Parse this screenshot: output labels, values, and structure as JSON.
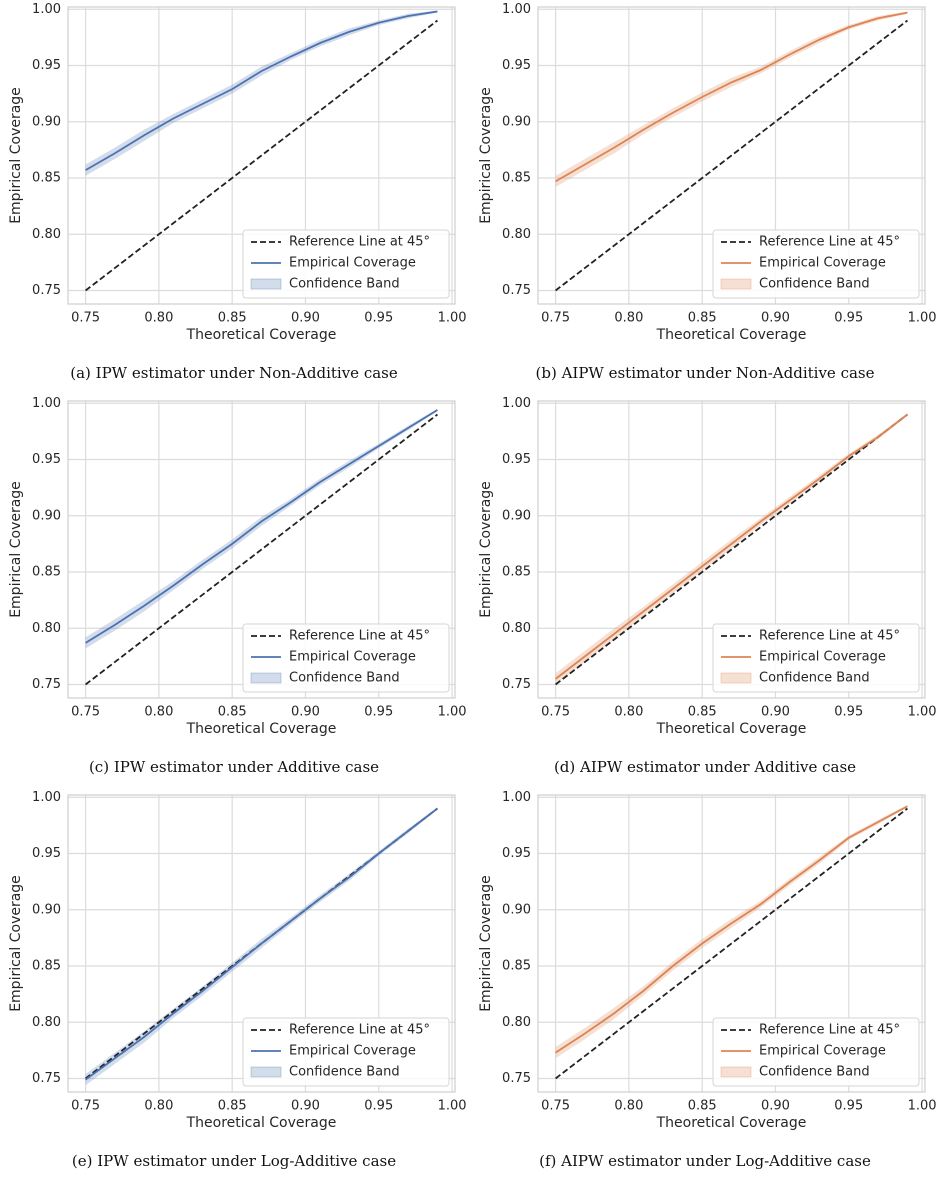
{
  "chart_data": [
    {
      "type": "line",
      "caption": "(a) IPW estimator under Non-Additive case",
      "xlabel": "Theoretical Coverage",
      "ylabel": "Empirical Coverage",
      "xlim": [
        0.738,
        1.002
      ],
      "ylim": [
        0.738,
        1.002
      ],
      "xticks": [
        0.75,
        {
          "value": 0.8,
          "label": "0.80"
        },
        0.85,
        {
          "value": 0.9,
          "label": "0.90"
        },
        0.95,
        {
          "value": 1,
          "label": "1.00"
        }
      ],
      "yticks": [
        0.75,
        {
          "value": 0.8,
          "label": "0.80"
        },
        0.85,
        {
          "value": 0.9,
          "label": "0.90"
        },
        0.95,
        {
          "value": 1,
          "label": "1.00"
        }
      ],
      "grid": true,
      "legend": "lower right",
      "x": [
        0.75,
        0.77,
        0.79,
        0.81,
        0.83,
        0.85,
        0.87,
        0.89,
        0.91,
        0.93,
        0.95,
        0.97,
        0.99
      ],
      "series": [
        {
          "name": "Reference Line at 45°",
          "color": "#222222",
          "dashed": true,
          "x": [
            0.75,
            0.99
          ],
          "values": [
            0.75,
            0.99
          ]
        },
        {
          "name": "Empirical Coverage",
          "color": "#4c72b0",
          "values": [
            0.857,
            0.872,
            0.888,
            0.903,
            0.916,
            0.929,
            0.945,
            0.958,
            0.97,
            0.98,
            0.988,
            0.994,
            0.998
          ]
        },
        {
          "name": "Confidence Band",
          "color": "#4c72b0",
          "lower": [
            0.852,
            0.867,
            0.883,
            0.899,
            0.912,
            0.925,
            0.941,
            0.955,
            0.967,
            0.977,
            0.986,
            0.992,
            0.997
          ],
          "upper": [
            0.862,
            0.877,
            0.893,
            0.907,
            0.92,
            0.933,
            0.949,
            0.961,
            0.973,
            0.983,
            0.99,
            0.996,
            0.999
          ]
        }
      ]
    },
    {
      "type": "line",
      "caption": "(b) AIPW estimator under Non-Additive case",
      "xlabel": "Theoretical Coverage",
      "ylabel": "Empirical Coverage",
      "xlim": [
        0.738,
        1.002
      ],
      "ylim": [
        0.738,
        1.002
      ],
      "xticks": [
        0.75,
        {
          "value": 0.8,
          "label": "0.80"
        },
        0.85,
        {
          "value": 0.9,
          "label": "0.90"
        },
        0.95,
        {
          "value": 1,
          "label": "1.00"
        }
      ],
      "yticks": [
        0.75,
        {
          "value": 0.8,
          "label": "0.80"
        },
        0.85,
        {
          "value": 0.9,
          "label": "0.90"
        },
        0.95,
        {
          "value": 1,
          "label": "1.00"
        }
      ],
      "grid": true,
      "legend": "lower right",
      "x": [
        0.75,
        0.77,
        0.79,
        0.81,
        0.83,
        0.85,
        0.87,
        0.89,
        0.91,
        0.93,
        0.95,
        0.97,
        0.99
      ],
      "series": [
        {
          "name": "Reference Line at 45°",
          "color": "#222222",
          "dashed": true,
          "x": [
            0.75,
            0.99
          ],
          "values": [
            0.75,
            0.99
          ]
        },
        {
          "name": "Empirical Coverage",
          "color": "#dd8452",
          "values": [
            0.847,
            0.862,
            0.877,
            0.893,
            0.908,
            0.922,
            0.935,
            0.946,
            0.96,
            0.973,
            0.984,
            0.992,
            0.997
          ]
        },
        {
          "name": "Confidence Band",
          "color": "#dd8452",
          "lower": [
            0.842,
            0.857,
            0.872,
            0.889,
            0.904,
            0.918,
            0.931,
            0.943,
            0.957,
            0.97,
            0.982,
            0.99,
            0.996
          ],
          "upper": [
            0.852,
            0.867,
            0.882,
            0.897,
            0.912,
            0.926,
            0.939,
            0.949,
            0.963,
            0.976,
            0.986,
            0.994,
            0.998
          ]
        }
      ]
    },
    {
      "type": "line",
      "caption": "(c) IPW estimator under Additive case",
      "xlabel": "Theoretical Coverage",
      "ylabel": "Empirical Coverage",
      "xlim": [
        0.738,
        1.002
      ],
      "ylim": [
        0.738,
        1.002
      ],
      "xticks": [
        0.75,
        {
          "value": 0.8,
          "label": "0.80"
        },
        0.85,
        {
          "value": 0.9,
          "label": "0.90"
        },
        0.95,
        {
          "value": 1,
          "label": "1.00"
        }
      ],
      "yticks": [
        0.75,
        {
          "value": 0.8,
          "label": "0.80"
        },
        0.85,
        {
          "value": 0.9,
          "label": "0.90"
        },
        0.95,
        {
          "value": 1,
          "label": "1.00"
        }
      ],
      "grid": true,
      "legend": "lower right",
      "x": [
        0.75,
        0.77,
        0.79,
        0.81,
        0.83,
        0.85,
        0.87,
        0.89,
        0.91,
        0.93,
        0.95,
        0.97,
        0.99
      ],
      "series": [
        {
          "name": "Reference Line at 45°",
          "color": "#222222",
          "dashed": true,
          "x": [
            0.75,
            0.99
          ],
          "values": [
            0.75,
            0.99
          ]
        },
        {
          "name": "Empirical Coverage",
          "color": "#4c72b0",
          "values": [
            0.787,
            0.803,
            0.82,
            0.838,
            0.857,
            0.875,
            0.895,
            0.912,
            0.93,
            0.946,
            0.962,
            0.978,
            0.994
          ]
        },
        {
          "name": "Confidence Band",
          "color": "#4c72b0",
          "lower": [
            0.782,
            0.798,
            0.815,
            0.834,
            0.853,
            0.871,
            0.891,
            0.909,
            0.927,
            0.943,
            0.96,
            0.976,
            0.993
          ],
          "upper": [
            0.792,
            0.808,
            0.825,
            0.842,
            0.861,
            0.879,
            0.899,
            0.915,
            0.933,
            0.949,
            0.964,
            0.98,
            0.995
          ]
        }
      ]
    },
    {
      "type": "line",
      "caption": "(d) AIPW estimator under Additive case",
      "xlabel": "Theoretical Coverage",
      "ylabel": "Empirical Coverage",
      "xlim": [
        0.738,
        1.002
      ],
      "ylim": [
        0.738,
        1.002
      ],
      "xticks": [
        0.75,
        {
          "value": 0.8,
          "label": "0.80"
        },
        0.85,
        {
          "value": 0.9,
          "label": "0.90"
        },
        0.95,
        {
          "value": 1,
          "label": "1.00"
        }
      ],
      "yticks": [
        0.75,
        {
          "value": 0.8,
          "label": "0.80"
        },
        0.85,
        {
          "value": 0.9,
          "label": "0.90"
        },
        0.95,
        {
          "value": 1,
          "label": "1.00"
        }
      ],
      "grid": true,
      "legend": "lower right",
      "x": [
        0.75,
        0.77,
        0.79,
        0.81,
        0.83,
        0.85,
        0.87,
        0.89,
        0.91,
        0.93,
        0.95,
        0.97,
        0.99
      ],
      "series": [
        {
          "name": "Reference Line at 45°",
          "color": "#222222",
          "dashed": true,
          "x": [
            0.75,
            0.99
          ],
          "values": [
            0.75,
            0.99
          ]
        },
        {
          "name": "Empirical Coverage",
          "color": "#dd8452",
          "values": [
            0.755,
            0.775,
            0.795,
            0.815,
            0.835,
            0.855,
            0.875,
            0.895,
            0.914,
            0.933,
            0.953,
            0.97,
            0.99
          ]
        },
        {
          "name": "Confidence Band",
          "color": "#dd8452",
          "lower": [
            0.75,
            0.77,
            0.79,
            0.811,
            0.831,
            0.851,
            0.871,
            0.892,
            0.911,
            0.93,
            0.951,
            0.968,
            0.989
          ],
          "upper": [
            0.76,
            0.78,
            0.8,
            0.819,
            0.839,
            0.859,
            0.879,
            0.898,
            0.917,
            0.936,
            0.955,
            0.972,
            0.991
          ]
        }
      ]
    },
    {
      "type": "line",
      "caption": "(e) IPW estimator under Log-Additive case",
      "xlabel": "Theoretical Coverage",
      "ylabel": "Empirical Coverage",
      "xlim": [
        0.738,
        1.002
      ],
      "ylim": [
        0.738,
        1.002
      ],
      "xticks": [
        0.75,
        {
          "value": 0.8,
          "label": "0.80"
        },
        0.85,
        {
          "value": 0.9,
          "label": "0.90"
        },
        0.95,
        {
          "value": 1,
          "label": "1.00"
        }
      ],
      "yticks": [
        0.75,
        {
          "value": 0.8,
          "label": "0.80"
        },
        0.85,
        {
          "value": 0.9,
          "label": "0.90"
        },
        0.95,
        {
          "value": 1,
          "label": "1.00"
        }
      ],
      "grid": true,
      "legend": "lower right",
      "x": [
        0.75,
        0.77,
        0.79,
        0.81,
        0.83,
        0.85,
        0.87,
        0.89,
        0.91,
        0.93,
        0.95,
        0.97,
        0.99
      ],
      "series": [
        {
          "name": "Reference Line at 45°",
          "color": "#222222",
          "dashed": true,
          "x": [
            0.75,
            0.99
          ],
          "values": [
            0.75,
            0.99
          ]
        },
        {
          "name": "Empirical Coverage",
          "color": "#4c72b0",
          "values": [
            0.749,
            0.768,
            0.787,
            0.808,
            0.828,
            0.849,
            0.87,
            0.89,
            0.91,
            0.929,
            0.95,
            0.97,
            0.99
          ]
        },
        {
          "name": "Confidence Band",
          "color": "#4c72b0",
          "lower": [
            0.744,
            0.763,
            0.782,
            0.804,
            0.824,
            0.845,
            0.866,
            0.887,
            0.907,
            0.926,
            0.948,
            0.968,
            0.989
          ],
          "upper": [
            0.754,
            0.773,
            0.792,
            0.812,
            0.832,
            0.853,
            0.874,
            0.893,
            0.913,
            0.932,
            0.952,
            0.972,
            0.991
          ]
        }
      ]
    },
    {
      "type": "line",
      "caption": "(f) AIPW estimator under Log-Additive case",
      "xlabel": "Theoretical Coverage",
      "ylabel": "Empirical Coverage",
      "xlim": [
        0.738,
        1.002
      ],
      "ylim": [
        0.738,
        1.002
      ],
      "xticks": [
        0.75,
        {
          "value": 0.8,
          "label": "0.80"
        },
        0.85,
        {
          "value": 0.9,
          "label": "0.90"
        },
        0.95,
        {
          "value": 1,
          "label": "1.00"
        }
      ],
      "yticks": [
        0.75,
        {
          "value": 0.8,
          "label": "0.80"
        },
        0.85,
        {
          "value": 0.9,
          "label": "0.90"
        },
        0.95,
        {
          "value": 1,
          "label": "1.00"
        }
      ],
      "grid": true,
      "legend": "lower right",
      "x": [
        0.75,
        0.77,
        0.79,
        0.81,
        0.83,
        0.85,
        0.87,
        0.89,
        0.91,
        0.93,
        0.95,
        0.97,
        0.99
      ],
      "series": [
        {
          "name": "Reference Line at 45°",
          "color": "#222222",
          "dashed": true,
          "x": [
            0.75,
            0.99
          ],
          "values": [
            0.75,
            0.99
          ]
        },
        {
          "name": "Empirical Coverage",
          "color": "#dd8452",
          "values": [
            0.773,
            0.79,
            0.808,
            0.828,
            0.85,
            0.87,
            0.888,
            0.905,
            0.925,
            0.944,
            0.964,
            0.978,
            0.992
          ]
        },
        {
          "name": "Confidence Band",
          "color": "#dd8452",
          "lower": [
            0.768,
            0.785,
            0.803,
            0.824,
            0.846,
            0.866,
            0.884,
            0.902,
            0.922,
            0.941,
            0.962,
            0.976,
            0.991
          ],
          "upper": [
            0.778,
            0.795,
            0.813,
            0.832,
            0.854,
            0.874,
            0.892,
            0.908,
            0.928,
            0.947,
            0.966,
            0.98,
            0.993
          ]
        }
      ]
    }
  ]
}
